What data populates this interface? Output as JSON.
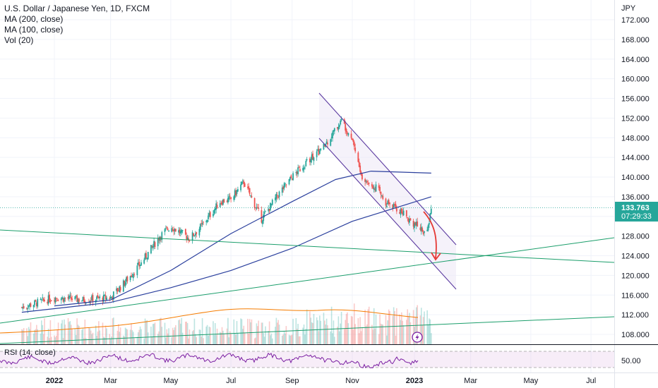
{
  "legend": {
    "title": "U.S. Dollar / Japanese Yen, 1D, FXCM",
    "ma200": "MA (200, close)",
    "ma100": "MA (100, close)",
    "vol": "Vol (20)"
  },
  "rsi_label": "RSI (14, close)",
  "price_axis": {
    "currency": "JPY",
    "ticks": [
      "172.000",
      "168.000",
      "164.000",
      "160.000",
      "156.000",
      "152.000",
      "148.000",
      "144.000",
      "140.000",
      "136.000",
      "132.000",
      "128.000",
      "124.000",
      "120.000",
      "116.000",
      "112.000",
      "108.000"
    ],
    "last_price": "133.763",
    "countdown": "07:29:33"
  },
  "rsi_axis": {
    "tick": "50.00"
  },
  "time_axis": {
    "labels": [
      "2022",
      "Mar",
      "May",
      "Jul",
      "Sep",
      "Nov",
      "2023",
      "Mar",
      "May",
      "Jul"
    ]
  },
  "colors": {
    "up": "#26a69a",
    "down": "#ef5350",
    "ma_blue": "#2a3f9d",
    "vol_ma": "#f57c00",
    "trend_green": "#1b9e6b",
    "channel": "#5b3aa0",
    "arrow": "#e53935",
    "rsi": "#7b1fa2",
    "last_price_bg": "#26a69a"
  },
  "chart_data": {
    "type": "line",
    "symbol": "USDJPY",
    "title": "U.S. Dollar / Japanese Yen, 1D, FXCM",
    "ylim": [
      105,
      175
    ],
    "series": [
      {
        "name": "",
        "x": [
          "2021-12-01",
          "2022-01-03",
          "2022-02-01",
          "2022-03-01",
          "2022-03-15",
          "2022-04-01",
          "2022-04-20",
          "2022-05-01",
          "2022-05-20",
          "2022-06-01",
          "2022-06-20",
          "2022-07-01",
          "2022-07-14",
          "2022-08-01",
          "2022-08-20",
          "2022-09-01",
          "2022-09-20",
          "2022-10-01",
          "2022-10-21",
          "2022-11-01",
          "2022-11-11",
          "2022-11-25",
          "2022-12-05",
          "2022-12-20",
          "2023-01-03",
          "2023-01-16",
          "2023-01-20"
        ],
        "values": [
          113.5,
          115.5,
          115.0,
          115.5,
          118.5,
          122.5,
          128.0,
          130.0,
          127.5,
          130.0,
          135.0,
          135.5,
          139.0,
          131.5,
          137.0,
          140.0,
          144.0,
          145.5,
          151.5,
          148.0,
          139.5,
          138.0,
          135.0,
          133.0,
          130.5,
          128.5,
          133.763
        ]
      },
      {
        "name": "MA (100, close)",
        "x": [
          "2022-01-03",
          "2022-03-01",
          "2022-05-01",
          "2022-07-01",
          "2022-09-01",
          "2022-10-15",
          "2022-11-20",
          "2023-01-20"
        ],
        "values": [
          113.8,
          115.0,
          121.0,
          128.5,
          135.0,
          139.5,
          141.2,
          140.8
        ]
      },
      {
        "name": "MA (200, close)",
        "x": [
          "2021-12-01",
          "2022-03-01",
          "2022-05-01",
          "2022-07-01",
          "2022-09-01",
          "2022-11-01",
          "2023-01-20"
        ],
        "values": [
          112.5,
          114.5,
          117.5,
          121.0,
          125.5,
          131.0,
          136.0
        ]
      }
    ],
    "rsi_range": [
      0,
      100
    ],
    "rsi_level": 50
  }
}
